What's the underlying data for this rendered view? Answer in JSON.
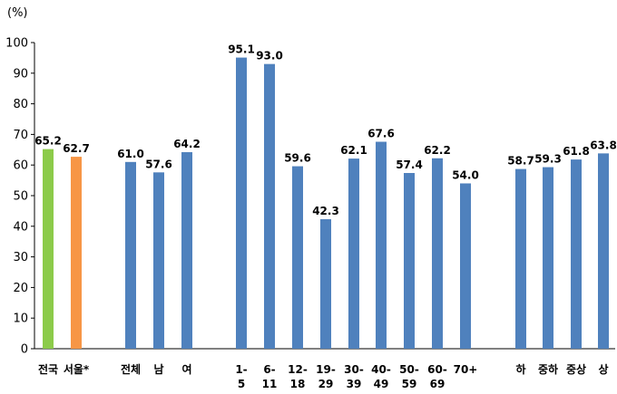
{
  "chart_data": {
    "type": "bar",
    "ylabel": "(%)",
    "ylim": [
      0,
      100
    ],
    "yticks": [
      0,
      10,
      20,
      30,
      40,
      50,
      60,
      70,
      80,
      90,
      100
    ],
    "grid": false,
    "legend": "none",
    "colors": {
      "green": "#8CCB4A",
      "orange": "#F79646",
      "blue": "#4F81BD"
    },
    "groups": [
      {
        "bars": [
          {
            "category": "전국",
            "label_lines": [
              "전국"
            ],
            "value": 65.2,
            "color": "green"
          },
          {
            "category": "서울*",
            "label_lines": [
              "서울*"
            ],
            "value": 62.7,
            "color": "orange"
          }
        ]
      },
      {
        "bars": [
          {
            "category": "전체",
            "label_lines": [
              "전체"
            ],
            "value": 61.0,
            "color": "blue"
          },
          {
            "category": "남",
            "label_lines": [
              "남"
            ],
            "value": 57.6,
            "color": "blue"
          },
          {
            "category": "여",
            "label_lines": [
              "여"
            ],
            "value": 64.2,
            "color": "blue"
          }
        ]
      },
      {
        "bars": [
          {
            "category": "1-5",
            "label_lines": [
              "1-",
              "5"
            ],
            "value": 95.1,
            "color": "blue"
          },
          {
            "category": "6-11",
            "label_lines": [
              "6-",
              "11"
            ],
            "value": 93.0,
            "color": "blue"
          },
          {
            "category": "12-18",
            "label_lines": [
              "12-",
              "18"
            ],
            "value": 59.6,
            "color": "blue"
          },
          {
            "category": "19-29",
            "label_lines": [
              "19-",
              "29"
            ],
            "value": 42.3,
            "color": "blue"
          },
          {
            "category": "30-39",
            "label_lines": [
              "30-",
              "39"
            ],
            "value": 62.1,
            "color": "blue"
          },
          {
            "category": "40-49",
            "label_lines": [
              "40-",
              "49"
            ],
            "value": 67.6,
            "color": "blue"
          },
          {
            "category": "50-59",
            "label_lines": [
              "50-",
              "59"
            ],
            "value": 57.4,
            "color": "blue"
          },
          {
            "category": "60-69",
            "label_lines": [
              "60-",
              "69"
            ],
            "value": 62.2,
            "color": "blue"
          },
          {
            "category": "70+",
            "label_lines": [
              "70+"
            ],
            "value": 54.0,
            "color": "blue"
          }
        ]
      },
      {
        "bars": [
          {
            "category": "하",
            "label_lines": [
              "하"
            ],
            "value": 58.7,
            "color": "blue"
          },
          {
            "category": "중하",
            "label_lines": [
              "중하"
            ],
            "value": 59.3,
            "color": "blue"
          },
          {
            "category": "중상",
            "label_lines": [
              "중상"
            ],
            "value": 61.8,
            "color": "blue"
          },
          {
            "category": "상",
            "label_lines": [
              "상"
            ],
            "value": 63.8,
            "color": "blue"
          }
        ]
      }
    ]
  }
}
